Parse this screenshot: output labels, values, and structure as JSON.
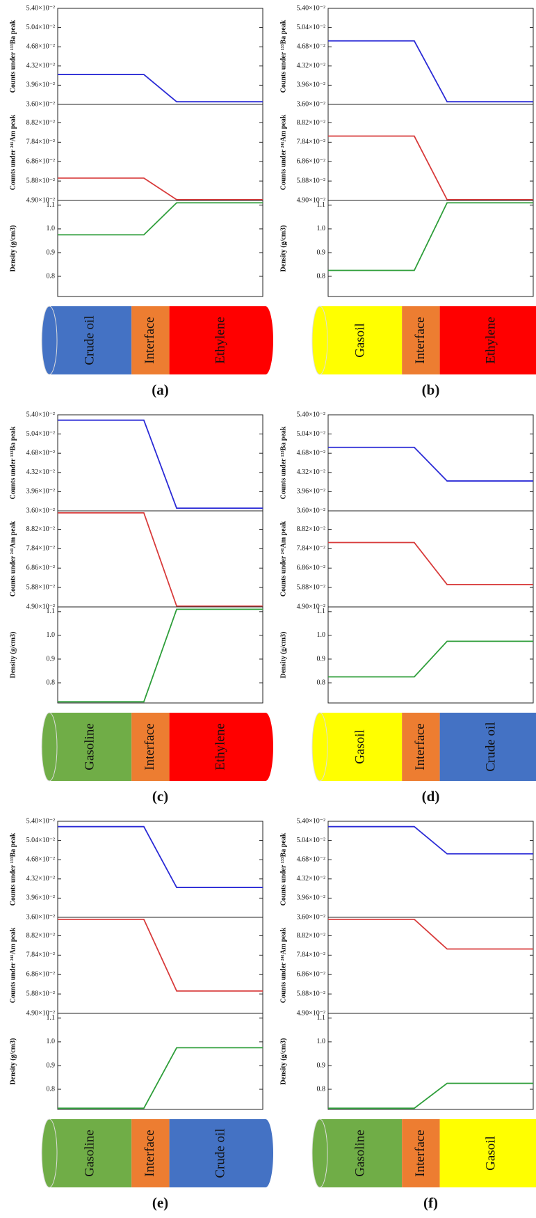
{
  "chart_data": [
    {
      "type": "line",
      "label": "(a)",
      "x": [
        0,
        0.42,
        0.58,
        1
      ],
      "xlim": [
        0,
        1
      ],
      "pipe": [
        {
          "label": "Crude oil",
          "color": "#4472c4"
        },
        {
          "label": "Interface",
          "color": "#ed7d31"
        },
        {
          "label": "Ethylene",
          "color": "#ff0000"
        }
      ],
      "subplots": [
        {
          "ylabel": "Counts under ¹³³Ba peak",
          "ylim": [
            0.036,
            0.054
          ],
          "yticks": [
            {
              "value": 0.036,
              "label": "3.60×10⁻²"
            },
            {
              "value": 0.0396,
              "label": "3.96×10⁻²"
            },
            {
              "value": 0.0432,
              "label": "4.32×10⁻²"
            },
            {
              "value": 0.0468,
              "label": "4.68×10⁻²"
            },
            {
              "value": 0.0504,
              "label": "5.04×10⁻²"
            },
            {
              "value": 0.054,
              "label": "5.40×10⁻²"
            }
          ],
          "series": [
            {
              "color": "#2b2bd6",
              "values": [
                0.0416,
                0.0416,
                0.0365,
                0.0365
              ]
            }
          ]
        },
        {
          "ylabel": "Counts under ²⁴¹Am peak",
          "ylim": [
            0.049,
            0.0975
          ],
          "yticks": [
            {
              "value": 0.049,
              "label": "4.90×10⁻²"
            },
            {
              "value": 0.0588,
              "label": "5.88×10⁻²"
            },
            {
              "value": 0.0686,
              "label": "6.86×10⁻²"
            },
            {
              "value": 0.0784,
              "label": "7.84×10⁻²"
            },
            {
              "value": 0.0882,
              "label": "8.82×10⁻²"
            }
          ],
          "series": [
            {
              "color": "#d83b3b",
              "values": [
                0.0603,
                0.0603,
                0.0494,
                0.0494
              ]
            }
          ]
        },
        {
          "ylabel": "Density (g/cm3)",
          "ylim": [
            0.715,
            1.12
          ],
          "yticks": [
            0.8,
            0.9,
            {
              "value": 1,
              "label": "1.0"
            },
            1.1
          ],
          "series": [
            {
              "color": "#2e9e3a",
              "values": [
                0.975,
                0.975,
                1.11,
                1.11
              ]
            }
          ]
        }
      ]
    },
    {
      "type": "line",
      "label": "(b)",
      "x": [
        0,
        0.42,
        0.58,
        1
      ],
      "xlim": [
        0,
        1
      ],
      "pipe": [
        {
          "label": "Gasoil",
          "color": "#ffff00"
        },
        {
          "label": "Interface",
          "color": "#ed7d31"
        },
        {
          "label": "Ethylene",
          "color": "#ff0000"
        }
      ],
      "subplots": [
        {
          "ylabel": "Counts under ¹³³Ba peak",
          "ylim": [
            0.036,
            0.054
          ],
          "yticks": [
            {
              "value": 0.036,
              "label": "3.60×10⁻²"
            },
            {
              "value": 0.0396,
              "label": "3.96×10⁻²"
            },
            {
              "value": 0.0432,
              "label": "4.32×10⁻²"
            },
            {
              "value": 0.0468,
              "label": "4.68×10⁻²"
            },
            {
              "value": 0.0504,
              "label": "5.04×10⁻²"
            },
            {
              "value": 0.054,
              "label": "5.40×10⁻²"
            }
          ],
          "series": [
            {
              "color": "#2b2bd6",
              "values": [
                0.0479,
                0.0479,
                0.0365,
                0.0365
              ]
            }
          ]
        },
        {
          "ylabel": "Counts under ²⁴¹Am peak",
          "ylim": [
            0.049,
            0.0975
          ],
          "yticks": [
            {
              "value": 0.049,
              "label": "4.90×10⁻²"
            },
            {
              "value": 0.0588,
              "label": "5.88×10⁻²"
            },
            {
              "value": 0.0686,
              "label": "6.86×10⁻²"
            },
            {
              "value": 0.0784,
              "label": "7.84×10⁻²"
            },
            {
              "value": 0.0882,
              "label": "8.82×10⁻²"
            }
          ],
          "series": [
            {
              "color": "#d83b3b",
              "values": [
                0.0815,
                0.0815,
                0.0494,
                0.0494
              ]
            }
          ]
        },
        {
          "ylabel": "Density (g/cm3)",
          "ylim": [
            0.715,
            1.12
          ],
          "yticks": [
            0.8,
            0.9,
            {
              "value": 1,
              "label": "1.0"
            },
            1.1
          ],
          "series": [
            {
              "color": "#2e9e3a",
              "values": [
                0.825,
                0.825,
                1.11,
                1.11
              ]
            }
          ]
        }
      ]
    },
    {
      "type": "line",
      "label": "(c)",
      "x": [
        0,
        0.42,
        0.58,
        1
      ],
      "xlim": [
        0,
        1
      ],
      "pipe": [
        {
          "label": "Gasoline",
          "color": "#70ad47"
        },
        {
          "label": "Interface",
          "color": "#ed7d31"
        },
        {
          "label": "Ethylene",
          "color": "#ff0000"
        }
      ],
      "subplots": [
        {
          "ylabel": "Counts under ¹³³Ba peak",
          "ylim": [
            0.036,
            0.054
          ],
          "yticks": [
            {
              "value": 0.036,
              "label": "3.60×10⁻²"
            },
            {
              "value": 0.0396,
              "label": "3.96×10⁻²"
            },
            {
              "value": 0.0432,
              "label": "4.32×10⁻²"
            },
            {
              "value": 0.0468,
              "label": "4.68×10⁻²"
            },
            {
              "value": 0.0504,
              "label": "5.04×10⁻²"
            },
            {
              "value": 0.054,
              "label": "5.40×10⁻²"
            }
          ],
          "series": [
            {
              "color": "#2b2bd6",
              "values": [
                0.053,
                0.053,
                0.0365,
                0.0365
              ]
            }
          ]
        },
        {
          "ylabel": "Counts under ²⁴¹Am peak",
          "ylim": [
            0.049,
            0.0975
          ],
          "yticks": [
            {
              "value": 0.049,
              "label": "4.90×10⁻²"
            },
            {
              "value": 0.0588,
              "label": "5.88×10⁻²"
            },
            {
              "value": 0.0686,
              "label": "6.86×10⁻²"
            },
            {
              "value": 0.0784,
              "label": "7.84×10⁻²"
            },
            {
              "value": 0.0882,
              "label": "8.82×10⁻²"
            }
          ],
          "series": [
            {
              "color": "#d83b3b",
              "values": [
                0.0965,
                0.0965,
                0.0494,
                0.0494
              ]
            }
          ]
        },
        {
          "ylabel": "Density (g/cm3)",
          "ylim": [
            0.715,
            1.12
          ],
          "yticks": [
            0.8,
            0.9,
            {
              "value": 1,
              "label": "1.0"
            },
            1.1
          ],
          "series": [
            {
              "color": "#2e9e3a",
              "values": [
                0.72,
                0.72,
                1.11,
                1.11
              ]
            }
          ]
        }
      ]
    },
    {
      "type": "line",
      "label": "(d)",
      "x": [
        0,
        0.42,
        0.58,
        1
      ],
      "xlim": [
        0,
        1
      ],
      "pipe": [
        {
          "label": "Gasoil",
          "color": "#ffff00"
        },
        {
          "label": "Interface",
          "color": "#ed7d31"
        },
        {
          "label": "Crude oil",
          "color": "#4472c4"
        }
      ],
      "subplots": [
        {
          "ylabel": "Counts under ¹³³Ba peak",
          "ylim": [
            0.036,
            0.054
          ],
          "yticks": [
            {
              "value": 0.036,
              "label": "3.60×10⁻²"
            },
            {
              "value": 0.0396,
              "label": "3.96×10⁻²"
            },
            {
              "value": 0.0432,
              "label": "4.32×10⁻²"
            },
            {
              "value": 0.0468,
              "label": "4.68×10⁻²"
            },
            {
              "value": 0.0504,
              "label": "5.04×10⁻²"
            },
            {
              "value": 0.054,
              "label": "5.40×10⁻²"
            }
          ],
          "series": [
            {
              "color": "#2b2bd6",
              "values": [
                0.0479,
                0.0479,
                0.0416,
                0.0416
              ]
            }
          ]
        },
        {
          "ylabel": "Counts under ²⁴¹Am peak",
          "ylim": [
            0.049,
            0.0975
          ],
          "yticks": [
            {
              "value": 0.049,
              "label": "4.90×10⁻²"
            },
            {
              "value": 0.0588,
              "label": "5.88×10⁻²"
            },
            {
              "value": 0.0686,
              "label": "6.86×10⁻²"
            },
            {
              "value": 0.0784,
              "label": "7.84×10⁻²"
            },
            {
              "value": 0.0882,
              "label": "8.82×10⁻²"
            }
          ],
          "series": [
            {
              "color": "#d83b3b",
              "values": [
                0.0815,
                0.0815,
                0.0603,
                0.0603
              ]
            }
          ]
        },
        {
          "ylabel": "Density (g/cm3)",
          "ylim": [
            0.715,
            1.12
          ],
          "yticks": [
            0.8,
            0.9,
            {
              "value": 1,
              "label": "1.0"
            },
            1.1
          ],
          "series": [
            {
              "color": "#2e9e3a",
              "values": [
                0.825,
                0.825,
                0.975,
                0.975
              ]
            }
          ]
        }
      ]
    },
    {
      "type": "line",
      "label": "(e)",
      "x": [
        0,
        0.42,
        0.58,
        1
      ],
      "xlim": [
        0,
        1
      ],
      "pipe": [
        {
          "label": "Gasoline",
          "color": "#70ad47"
        },
        {
          "label": "Interface",
          "color": "#ed7d31"
        },
        {
          "label": "Crude oil",
          "color": "#4472c4"
        }
      ],
      "subplots": [
        {
          "ylabel": "Counts under ¹³³Ba peak",
          "ylim": [
            0.036,
            0.054
          ],
          "yticks": [
            {
              "value": 0.036,
              "label": "3.60×10⁻²"
            },
            {
              "value": 0.0396,
              "label": "3.96×10⁻²"
            },
            {
              "value": 0.0432,
              "label": "4.32×10⁻²"
            },
            {
              "value": 0.0468,
              "label": "4.68×10⁻²"
            },
            {
              "value": 0.0504,
              "label": "5.04×10⁻²"
            },
            {
              "value": 0.054,
              "label": "5.40×10⁻²"
            }
          ],
          "series": [
            {
              "color": "#2b2bd6",
              "values": [
                0.053,
                0.053,
                0.0416,
                0.0416
              ]
            }
          ]
        },
        {
          "ylabel": "Counts under ²⁴¹Am peak",
          "ylim": [
            0.049,
            0.0975
          ],
          "yticks": [
            {
              "value": 0.049,
              "label": "4.90×10⁻²"
            },
            {
              "value": 0.0588,
              "label": "5.88×10⁻²"
            },
            {
              "value": 0.0686,
              "label": "6.86×10⁻²"
            },
            {
              "value": 0.0784,
              "label": "7.84×10⁻²"
            },
            {
              "value": 0.0882,
              "label": "8.82×10⁻²"
            }
          ],
          "series": [
            {
              "color": "#d83b3b",
              "values": [
                0.0965,
                0.0965,
                0.0603,
                0.0603
              ]
            }
          ]
        },
        {
          "ylabel": "Density (g/cm3)",
          "ylim": [
            0.715,
            1.12
          ],
          "yticks": [
            0.8,
            0.9,
            {
              "value": 1,
              "label": "1.0"
            },
            1.1
          ],
          "series": [
            {
              "color": "#2e9e3a",
              "values": [
                0.72,
                0.72,
                0.975,
                0.975
              ]
            }
          ]
        }
      ]
    },
    {
      "type": "line",
      "label": "(f)",
      "x": [
        0,
        0.42,
        0.58,
        1
      ],
      "xlim": [
        0,
        1
      ],
      "pipe": [
        {
          "label": "Gasoline",
          "color": "#70ad47"
        },
        {
          "label": "Interface",
          "color": "#ed7d31"
        },
        {
          "label": "Gasoil",
          "color": "#ffff00"
        }
      ],
      "subplots": [
        {
          "ylabel": "Counts under ¹³³Ba peak",
          "ylim": [
            0.036,
            0.054
          ],
          "yticks": [
            {
              "value": 0.036,
              "label": "3.60×10⁻²"
            },
            {
              "value": 0.0396,
              "label": "3.96×10⁻²"
            },
            {
              "value": 0.0432,
              "label": "4.32×10⁻²"
            },
            {
              "value": 0.0468,
              "label": "4.68×10⁻²"
            },
            {
              "value": 0.0504,
              "label": "5.04×10⁻²"
            },
            {
              "value": 0.054,
              "label": "5.40×10⁻²"
            }
          ],
          "series": [
            {
              "color": "#2b2bd6",
              "values": [
                0.053,
                0.053,
                0.0479,
                0.0479
              ]
            }
          ]
        },
        {
          "ylabel": "Counts under ²⁴¹Am peak",
          "ylim": [
            0.049,
            0.0975
          ],
          "yticks": [
            {
              "value": 0.049,
              "label": "4.90×10⁻²"
            },
            {
              "value": 0.0588,
              "label": "5.88×10⁻²"
            },
            {
              "value": 0.0686,
              "label": "6.86×10⁻²"
            },
            {
              "value": 0.0784,
              "label": "7.84×10⁻²"
            },
            {
              "value": 0.0882,
              "label": "8.82×10⁻²"
            }
          ],
          "series": [
            {
              "color": "#d83b3b",
              "values": [
                0.0965,
                0.0965,
                0.0815,
                0.0815
              ]
            }
          ]
        },
        {
          "ylabel": "Density (g/cm3)",
          "ylim": [
            0.715,
            1.12
          ],
          "yticks": [
            0.8,
            0.9,
            {
              "value": 1,
              "label": "1.0"
            },
            1.1
          ],
          "series": [
            {
              "color": "#2e9e3a",
              "values": [
                0.72,
                0.72,
                0.825,
                0.825
              ]
            }
          ]
        }
      ]
    }
  ]
}
